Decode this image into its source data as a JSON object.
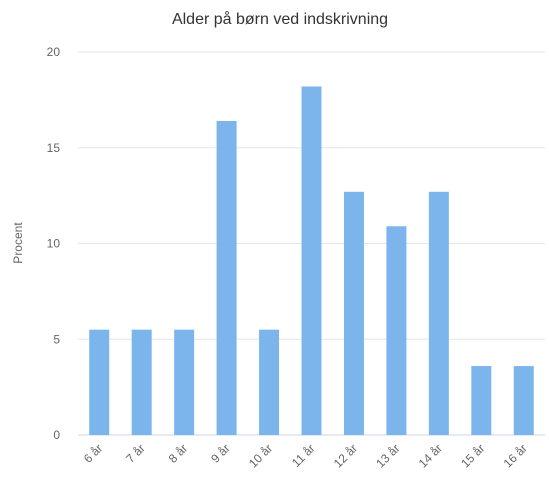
{
  "chart_data": {
    "type": "bar",
    "title": "Alder på børn ved indskrivning",
    "y_label": "Procent",
    "categories": [
      "6 år",
      "7 år",
      "8 år",
      "9 år",
      "10 år",
      "11 år",
      "12 år",
      "13 år",
      "14 år",
      "15 år",
      "16 år"
    ],
    "values": [
      5.5,
      5.5,
      5.5,
      16.4,
      5.5,
      18.2,
      12.7,
      10.9,
      12.7,
      3.6,
      3.6
    ],
    "color": "#7cb5ec",
    "ylim": [
      0,
      20
    ],
    "yticks": [
      0,
      5,
      10,
      15,
      20
    ],
    "grid": true
  }
}
